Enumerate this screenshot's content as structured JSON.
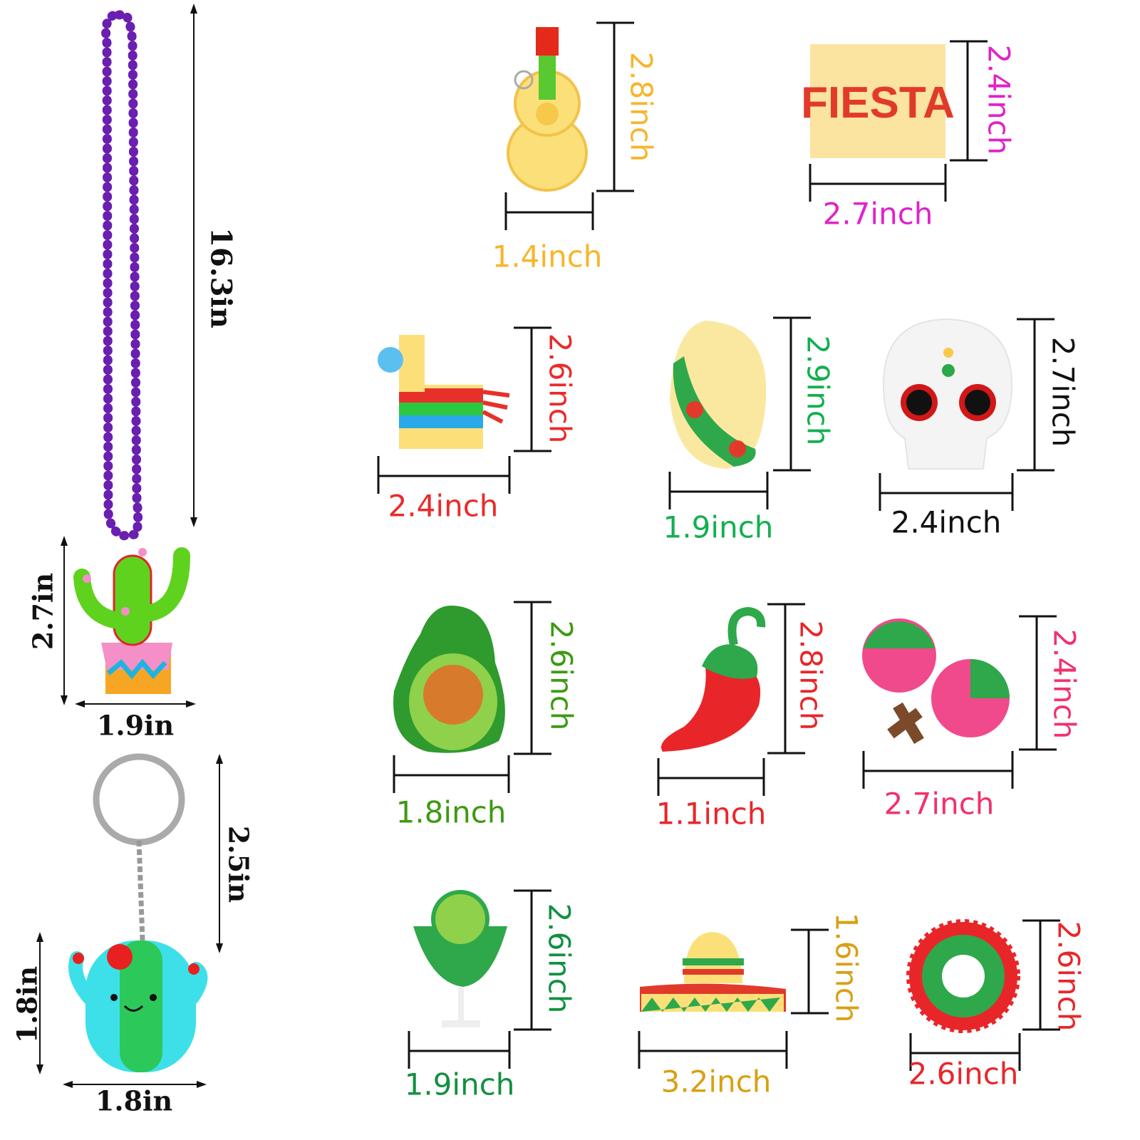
{
  "necklace": {
    "length_label": "16.3in",
    "pendant_height_label": "2.7in",
    "pendant_width_label": "1.9in",
    "bead_color": "#6a1fb0"
  },
  "keychain": {
    "length_label": "2.5in",
    "charm_height_label": "1.8in",
    "charm_width_label": "1.8in"
  },
  "ornaments": [
    {
      "name": "guitar",
      "height_label": "2.8inch",
      "width_label": "1.4inch",
      "color": "#f7b52c"
    },
    {
      "name": "fiesta-banner",
      "height_label": "2.4inch",
      "width_label": "2.7inch",
      "color": "#e022c8",
      "banner_text": "FIESTA"
    },
    {
      "name": "pinata-llama",
      "height_label": "2.6inch",
      "width_label": "2.4inch",
      "color": "#ea2a2a"
    },
    {
      "name": "taco",
      "height_label": "2.9inch",
      "width_label": "1.9inch",
      "color": "#12b04e"
    },
    {
      "name": "sugar-skull",
      "height_label": "2.7inch",
      "width_label": "2.4inch",
      "color": "#111111"
    },
    {
      "name": "avocado",
      "height_label": "2.6inch",
      "width_label": "1.8inch",
      "color": "#3d9a12"
    },
    {
      "name": "chili-pepper",
      "height_label": "2.8inch",
      "width_label": "1.1inch",
      "color": "#e8262a"
    },
    {
      "name": "maracas",
      "height_label": "2.4inch",
      "width_label": "2.7inch",
      "color": "#f2316c"
    },
    {
      "name": "margarita",
      "height_label": "2.6inch",
      "width_label": "1.9inch",
      "color": "#129040"
    },
    {
      "name": "sombrero",
      "height_label": "1.6inch",
      "width_label": "3.2inch",
      "color": "#d9a012"
    },
    {
      "name": "sun-medallion",
      "height_label": "2.6inch",
      "width_label": "2.6inch",
      "color": "#e8262a"
    }
  ]
}
